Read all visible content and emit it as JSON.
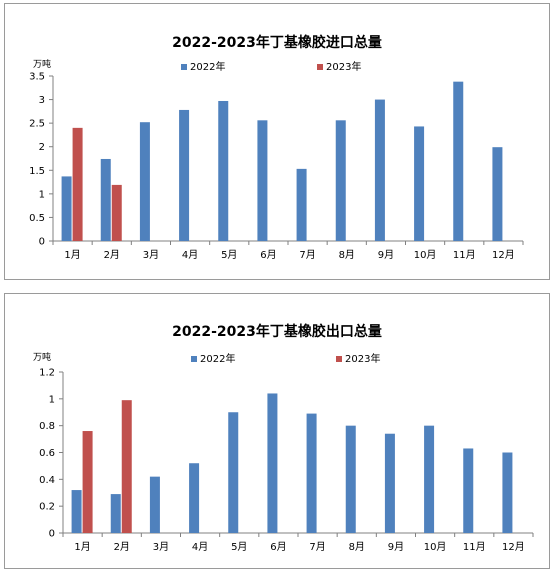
{
  "chart_data": [
    {
      "type": "bar",
      "title": "2022-2023年丁基橡胶进口总量",
      "ylabel": "万吨",
      "xlabel": "",
      "categories": [
        "1月",
        "2月",
        "3月",
        "4月",
        "5月",
        "6月",
        "7月",
        "8月",
        "9月",
        "10月",
        "11月",
        "12月"
      ],
      "series": [
        {
          "name": "2022年",
          "color": "#4f81bd",
          "values": [
            1.37,
            1.74,
            2.52,
            2.78,
            2.97,
            2.56,
            1.53,
            2.56,
            3.0,
            2.43,
            3.38,
            1.99
          ]
        },
        {
          "name": "2023年",
          "color": "#c0504d",
          "values": [
            2.4,
            1.19,
            null,
            null,
            null,
            null,
            null,
            null,
            null,
            null,
            null,
            null
          ]
        }
      ],
      "ylim": [
        0,
        3.5
      ],
      "yticks": [
        0,
        0.5,
        1,
        1.5,
        2,
        2.5,
        3,
        3.5
      ],
      "ytick_labels": [
        "0",
        "0.5",
        "1",
        "1.5",
        "2",
        "2.5",
        "3",
        "3.5"
      ],
      "grid": false,
      "legend_position": "top"
    },
    {
      "type": "bar",
      "title": "2022-2023年丁基橡胶出口总量",
      "ylabel": "万吨",
      "xlabel": "",
      "categories": [
        "1月",
        "2月",
        "3月",
        "4月",
        "5月",
        "6月",
        "7月",
        "8月",
        "9月",
        "10月",
        "11月",
        "12月"
      ],
      "series": [
        {
          "name": "2022年",
          "color": "#4f81bd",
          "values": [
            0.32,
            0.29,
            0.42,
            0.52,
            0.9,
            1.04,
            0.89,
            0.8,
            0.74,
            0.8,
            0.63,
            0.6
          ]
        },
        {
          "name": "2023年",
          "color": "#c0504d",
          "values": [
            0.76,
            0.99,
            null,
            null,
            null,
            null,
            null,
            null,
            null,
            null,
            null,
            null
          ]
        }
      ],
      "ylim": [
        0,
        1.2
      ],
      "yticks": [
        0,
        0.2,
        0.4,
        0.6,
        0.8,
        1,
        1.2
      ],
      "ytick_labels": [
        "0",
        "0.2",
        "0.4",
        "0.6",
        "0.8",
        "1",
        "1.2"
      ],
      "grid": false,
      "legend_position": "top"
    }
  ]
}
